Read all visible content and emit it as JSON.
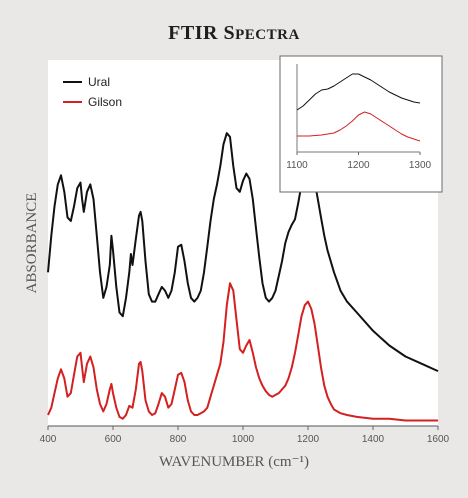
{
  "chart_data": [
    {
      "type": "line",
      "title": "FTIR Spectra",
      "xlabel": "WAVENUMBER (cm⁻¹)",
      "ylabel": "ABSORBANCE",
      "xlim": [
        400,
        1600
      ],
      "ylim": [
        0,
        1
      ],
      "xticks": [
        "400",
        "600",
        "800",
        "1000",
        "1200",
        "1400",
        "1600"
      ],
      "legend_position": "top-left",
      "grid": false,
      "series": [
        {
          "name": "Ural",
          "color": "#111111",
          "x": [
            400,
            410,
            420,
            430,
            440,
            450,
            460,
            470,
            480,
            490,
            500,
            505,
            510,
            520,
            530,
            540,
            550,
            560,
            570,
            580,
            590,
            595,
            600,
            610,
            620,
            630,
            640,
            650,
            655,
            660,
            670,
            680,
            685,
            690,
            700,
            710,
            720,
            730,
            740,
            750,
            760,
            770,
            780,
            790,
            800,
            810,
            820,
            830,
            840,
            850,
            860,
            870,
            880,
            890,
            900,
            910,
            920,
            930,
            940,
            950,
            960,
            970,
            980,
            990,
            1000,
            1010,
            1020,
            1030,
            1040,
            1050,
            1060,
            1070,
            1080,
            1090,
            1100,
            1110,
            1120,
            1130,
            1140,
            1150,
            1160,
            1170,
            1180,
            1190,
            1200,
            1210,
            1220,
            1230,
            1240,
            1250,
            1260,
            1280,
            1300,
            1320,
            1350,
            1400,
            1450,
            1500,
            1550,
            1600
          ],
          "y": [
            0.42,
            0.52,
            0.6,
            0.66,
            0.685,
            0.64,
            0.57,
            0.56,
            0.6,
            0.65,
            0.665,
            0.62,
            0.585,
            0.64,
            0.66,
            0.62,
            0.52,
            0.42,
            0.35,
            0.38,
            0.44,
            0.52,
            0.48,
            0.38,
            0.31,
            0.3,
            0.35,
            0.42,
            0.47,
            0.44,
            0.51,
            0.575,
            0.585,
            0.56,
            0.45,
            0.36,
            0.34,
            0.34,
            0.36,
            0.38,
            0.37,
            0.35,
            0.37,
            0.42,
            0.49,
            0.495,
            0.45,
            0.39,
            0.35,
            0.34,
            0.35,
            0.37,
            0.42,
            0.49,
            0.56,
            0.62,
            0.66,
            0.71,
            0.77,
            0.8,
            0.79,
            0.71,
            0.65,
            0.64,
            0.67,
            0.69,
            0.675,
            0.62,
            0.54,
            0.46,
            0.39,
            0.35,
            0.34,
            0.35,
            0.37,
            0.41,
            0.45,
            0.5,
            0.53,
            0.55,
            0.565,
            0.61,
            0.66,
            0.69,
            0.7,
            0.69,
            0.67,
            0.62,
            0.57,
            0.52,
            0.48,
            0.42,
            0.37,
            0.34,
            0.31,
            0.26,
            0.22,
            0.19,
            0.17,
            0.15
          ]
        },
        {
          "name": "Gilson",
          "color": "#d42020",
          "x": [
            400,
            410,
            420,
            430,
            440,
            450,
            460,
            470,
            480,
            490,
            500,
            505,
            510,
            520,
            530,
            540,
            550,
            560,
            570,
            580,
            590,
            595,
            600,
            610,
            620,
            630,
            640,
            650,
            660,
            670,
            680,
            685,
            690,
            700,
            710,
            720,
            730,
            740,
            750,
            760,
            770,
            780,
            790,
            800,
            810,
            820,
            830,
            840,
            850,
            860,
            870,
            880,
            890,
            900,
            910,
            920,
            930,
            940,
            950,
            960,
            970,
            980,
            990,
            1000,
            1010,
            1020,
            1030,
            1040,
            1050,
            1060,
            1070,
            1080,
            1090,
            1100,
            1110,
            1120,
            1130,
            1140,
            1150,
            1160,
            1170,
            1180,
            1190,
            1200,
            1210,
            1220,
            1230,
            1240,
            1250,
            1260,
            1270,
            1280,
            1300,
            1320,
            1350,
            1400,
            1450,
            1500,
            1550,
            1600
          ],
          "y": [
            0.03,
            0.05,
            0.09,
            0.13,
            0.155,
            0.13,
            0.08,
            0.09,
            0.14,
            0.19,
            0.2,
            0.16,
            0.12,
            0.17,
            0.19,
            0.16,
            0.1,
            0.06,
            0.04,
            0.06,
            0.1,
            0.115,
            0.09,
            0.05,
            0.025,
            0.02,
            0.03,
            0.055,
            0.05,
            0.1,
            0.17,
            0.175,
            0.15,
            0.07,
            0.04,
            0.03,
            0.035,
            0.06,
            0.09,
            0.08,
            0.05,
            0.06,
            0.1,
            0.14,
            0.145,
            0.12,
            0.07,
            0.04,
            0.03,
            0.03,
            0.035,
            0.04,
            0.05,
            0.08,
            0.11,
            0.14,
            0.17,
            0.23,
            0.33,
            0.39,
            0.37,
            0.29,
            0.21,
            0.2,
            0.22,
            0.235,
            0.2,
            0.16,
            0.13,
            0.11,
            0.095,
            0.085,
            0.08,
            0.085,
            0.09,
            0.1,
            0.11,
            0.13,
            0.16,
            0.2,
            0.25,
            0.3,
            0.33,
            0.34,
            0.32,
            0.28,
            0.22,
            0.16,
            0.11,
            0.08,
            0.06,
            0.045,
            0.035,
            0.03,
            0.025,
            0.02,
            0.02,
            0.015,
            0.015,
            0.015
          ]
        }
      ]
    },
    {
      "type": "line",
      "title": "",
      "xlim": [
        1100,
        1300
      ],
      "ylim": [
        0,
        1
      ],
      "xticks": [
        "1100",
        "1200",
        "1300"
      ],
      "legend_position": "none",
      "grid": false,
      "series": [
        {
          "color": "#111111",
          "x": [
            1100,
            1110,
            1120,
            1130,
            1140,
            1150,
            1160,
            1170,
            1180,
            1190,
            1200,
            1210,
            1220,
            1230,
            1240,
            1250,
            1260,
            1270,
            1280,
            1290,
            1300
          ],
          "y": [
            0.5,
            0.54,
            0.6,
            0.66,
            0.7,
            0.71,
            0.74,
            0.78,
            0.82,
            0.86,
            0.86,
            0.83,
            0.8,
            0.76,
            0.72,
            0.68,
            0.65,
            0.62,
            0.6,
            0.58,
            0.57
          ]
        },
        {
          "color": "#d42020",
          "x": [
            1100,
            1110,
            1120,
            1130,
            1140,
            1150,
            1160,
            1170,
            1180,
            1190,
            1200,
            1210,
            1220,
            1230,
            1240,
            1250,
            1260,
            1270,
            1280,
            1290,
            1300
          ],
          "y": [
            0.24,
            0.24,
            0.24,
            0.245,
            0.25,
            0.26,
            0.27,
            0.3,
            0.34,
            0.39,
            0.45,
            0.48,
            0.46,
            0.42,
            0.38,
            0.34,
            0.3,
            0.26,
            0.23,
            0.21,
            0.19
          ]
        }
      ]
    }
  ]
}
